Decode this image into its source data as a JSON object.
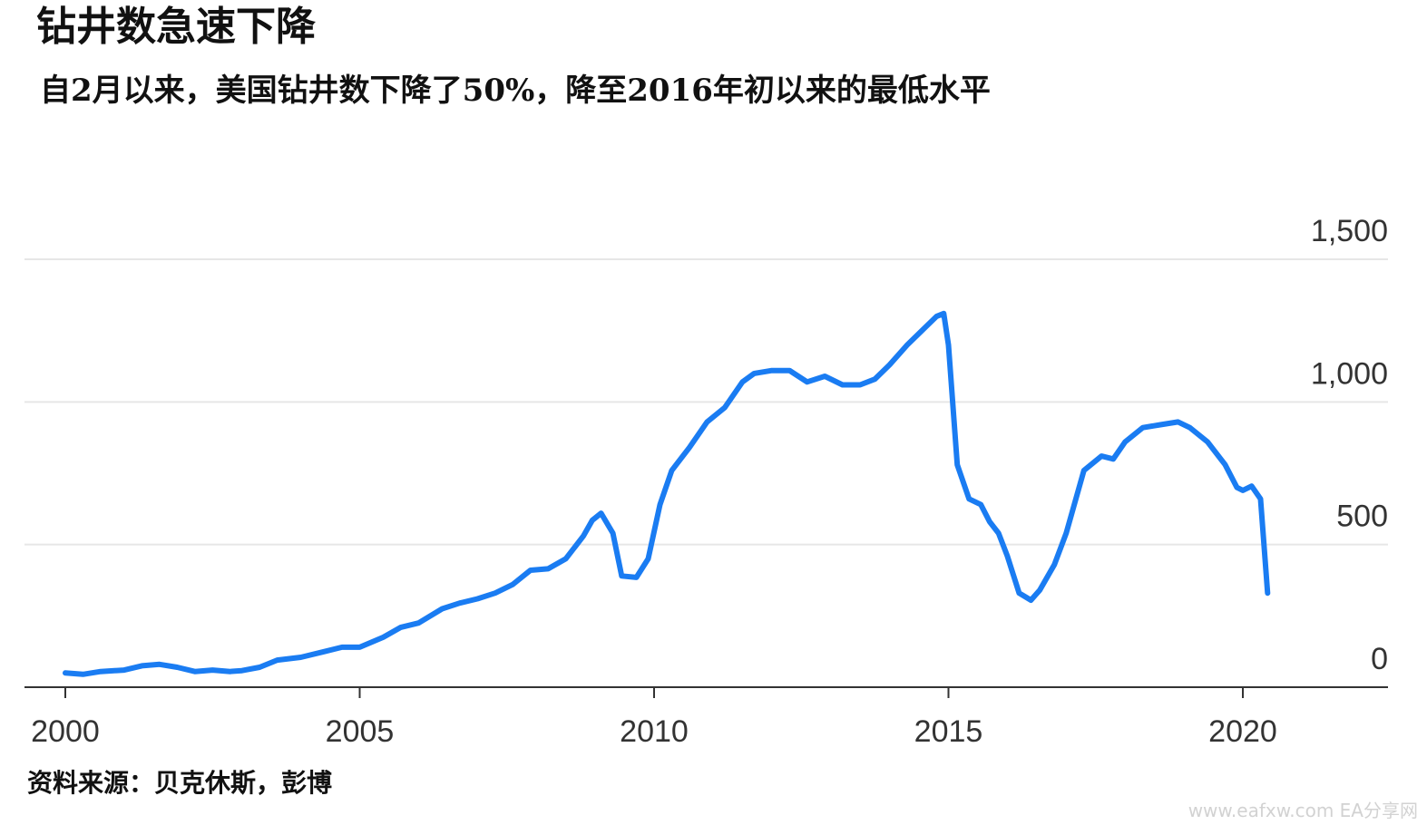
{
  "title": "钻井数急速下降",
  "subtitle": "自2月以来，美国钻井数下降了50%，降至2016年初以来的最低水平",
  "source": "资料来源：贝克休斯，彭博",
  "watermark": "www.eafxw.com  EA分享网",
  "chart_data": {
    "type": "line",
    "title": "钻井数急速下降",
    "subtitle": "自2月以来，美国钻井数下降了50%，降至2016年初以来的最低水平",
    "xlabel": "",
    "ylabel": "",
    "xlim": [
      2000,
      2022.4
    ],
    "ylim": [
      0,
      1500
    ],
    "x_ticks": [
      2000,
      2005,
      2010,
      2015,
      2020
    ],
    "x_tick_labels": [
      "2000",
      "2005",
      "2010",
      "2015",
      "2020"
    ],
    "y_ticks": [
      0,
      500,
      1000,
      1500
    ],
    "y_tick_labels": [
      "0",
      "500",
      "1,000",
      "1,500"
    ],
    "grid": "horizontal",
    "line_color": "#1a7cf2",
    "series": [
      {
        "name": "",
        "x": [
          2000.0,
          2000.3,
          2000.6,
          2001.0,
          2001.3,
          2001.6,
          2001.9,
          2002.2,
          2002.5,
          2002.8,
          2003.0,
          2003.3,
          2003.6,
          2004.0,
          2004.4,
          2004.7,
          2005.0,
          2005.4,
          2005.7,
          2006.0,
          2006.4,
          2006.7,
          2007.0,
          2007.3,
          2007.6,
          2007.9,
          2008.2,
          2008.5,
          2008.8,
          2008.95,
          2009.1,
          2009.3,
          2009.45,
          2009.7,
          2009.9,
          2010.1,
          2010.3,
          2010.6,
          2010.9,
          2011.2,
          2011.5,
          2011.7,
          2012.0,
          2012.3,
          2012.6,
          2012.9,
          2013.2,
          2013.5,
          2013.75,
          2014.0,
          2014.3,
          2014.6,
          2014.8,
          2014.92,
          2015.0,
          2015.15,
          2015.35,
          2015.55,
          2015.7,
          2015.85,
          2016.0,
          2016.2,
          2016.4,
          2016.55,
          2016.8,
          2017.0,
          2017.3,
          2017.6,
          2017.8,
          2018.0,
          2018.3,
          2018.6,
          2018.9,
          2019.1,
          2019.4,
          2019.7,
          2019.9,
          2020.0,
          2020.15,
          2020.3,
          2020.42
        ],
        "y": [
          50,
          45,
          55,
          60,
          75,
          80,
          70,
          55,
          60,
          55,
          58,
          70,
          95,
          105,
          125,
          140,
          140,
          175,
          210,
          225,
          275,
          295,
          310,
          330,
          360,
          410,
          415,
          450,
          530,
          585,
          610,
          540,
          390,
          385,
          450,
          640,
          760,
          840,
          930,
          980,
          1070,
          1100,
          1110,
          1110,
          1070,
          1090,
          1060,
          1060,
          1080,
          1130,
          1200,
          1260,
          1300,
          1310,
          1200,
          780,
          660,
          640,
          580,
          540,
          460,
          330,
          305,
          340,
          430,
          540,
          760,
          810,
          800,
          860,
          910,
          920,
          930,
          910,
          860,
          780,
          700,
          690,
          705,
          660,
          330
        ]
      }
    ]
  }
}
